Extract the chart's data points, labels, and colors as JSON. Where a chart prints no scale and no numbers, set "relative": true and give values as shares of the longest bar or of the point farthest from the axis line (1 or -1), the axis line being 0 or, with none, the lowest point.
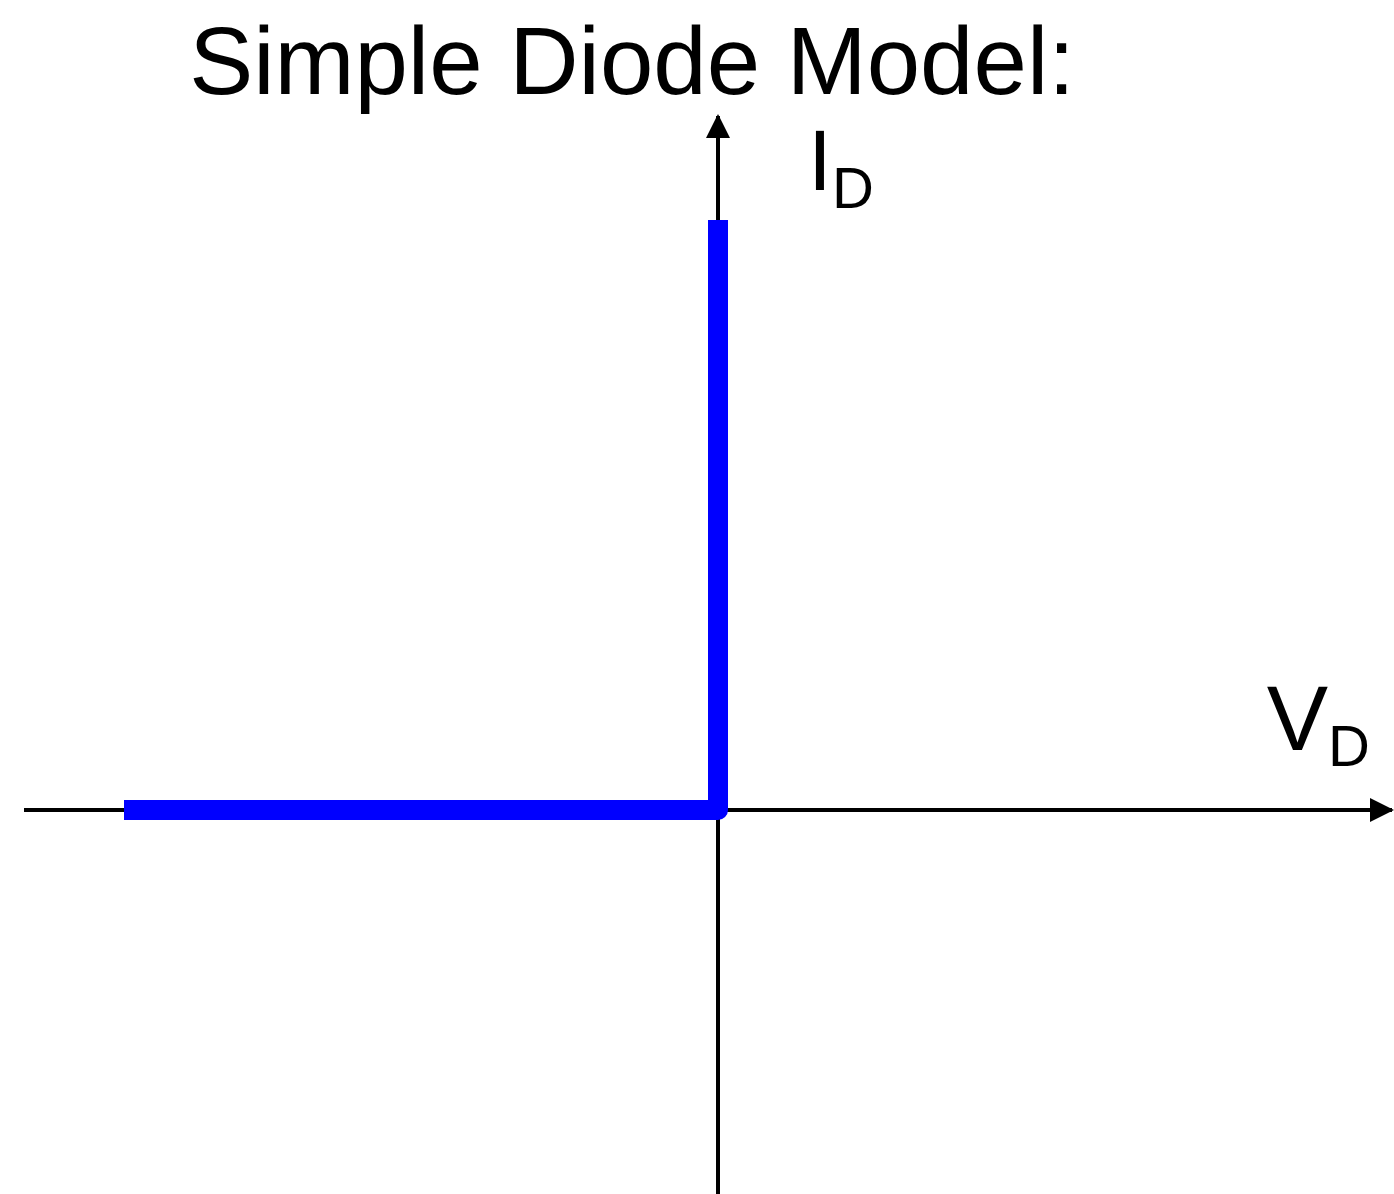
{
  "chart_data": {
    "type": "step",
    "title": "Simple Diode Model:",
    "xlabel": "V$_{D}$",
    "ylabel": "I$_{D}$",
    "categories": [
      null,
      null
    ],
    "values": [
      0,
      1
    ],
    "color": "#0000ff",
    "relative": true
  }
}
